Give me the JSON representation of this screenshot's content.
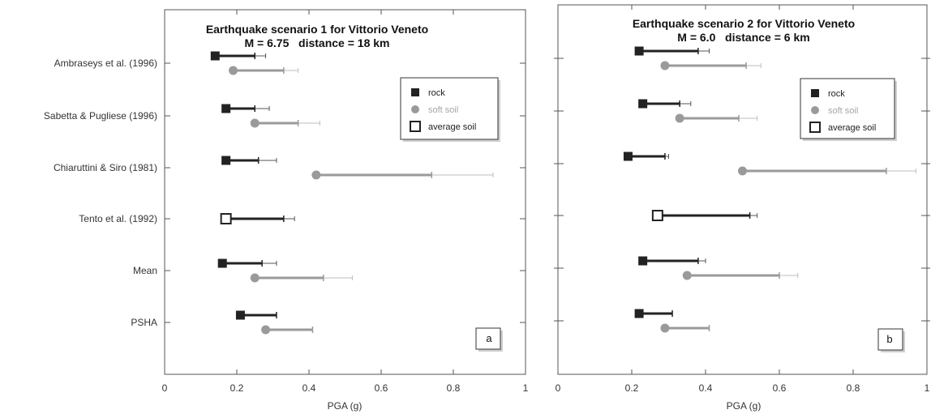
{
  "chart_data": [
    {
      "type": "scatter",
      "panel_label": "a",
      "title": "Earthquake scenario 1 for Vittorio Veneto",
      "subtitle": "M = 6.75   distance = 18 km",
      "xlabel": "PGA (g)",
      "xlim": [
        0,
        1
      ],
      "xticks": [
        "0",
        "0.2",
        "0.4",
        "0.6",
        "0.8",
        "1"
      ],
      "categories": [
        "Ambraseys et al. (1996)",
        "Sabetta & Pugliese (1996)",
        "Chiaruttini & Siro (1981)",
        "Tento et al. (1992)",
        "Mean",
        "PSHA"
      ],
      "legend": {
        "placement": "top-right",
        "entries": [
          "rock",
          "soft soil",
          "average soil"
        ]
      },
      "series": [
        {
          "name": "rock",
          "marker": "filled-square",
          "color": "#222222",
          "points": [
            {
              "category": "Ambraseys et al. (1996)",
              "value": 0.14,
              "inner": 0.25,
              "outer": 0.28
            },
            {
              "category": "Sabetta & Pugliese (1996)",
              "value": 0.17,
              "inner": 0.25,
              "outer": 0.29
            },
            {
              "category": "Chiaruttini & Siro (1981)",
              "value": 0.17,
              "inner": 0.26,
              "outer": 0.31
            },
            {
              "category": "Mean",
              "value": 0.16,
              "inner": 0.27,
              "outer": 0.31
            },
            {
              "category": "PSHA",
              "value": 0.21,
              "inner": 0.31,
              "outer": 0.31
            }
          ]
        },
        {
          "name": "soft soil",
          "marker": "filled-circle",
          "color": "#9a9a9a",
          "points": [
            {
              "category": "Ambraseys et al. (1996)",
              "value": 0.19,
              "inner": 0.33,
              "outer": 0.37
            },
            {
              "category": "Sabetta & Pugliese (1996)",
              "value": 0.25,
              "inner": 0.37,
              "outer": 0.43
            },
            {
              "category": "Chiaruttini & Siro (1981)",
              "value": 0.42,
              "inner": 0.74,
              "outer": 0.91
            },
            {
              "category": "Mean",
              "value": 0.25,
              "inner": 0.44,
              "outer": 0.52
            },
            {
              "category": "PSHA",
              "value": 0.28,
              "inner": 0.41,
              "outer": 0.41
            }
          ]
        },
        {
          "name": "average soil",
          "marker": "open-square",
          "color": "#222222",
          "points": [
            {
              "category": "Tento et al. (1992)",
              "value": 0.17,
              "inner": 0.33,
              "outer": 0.36
            }
          ]
        }
      ]
    },
    {
      "type": "scatter",
      "panel_label": "b",
      "title": "Earthquake scenario 2 for Vittorio Veneto",
      "subtitle": "M = 6.0   distance = 6 km",
      "xlabel": "PGA (g)",
      "xlim": [
        0,
        1
      ],
      "xticks": [
        "0",
        "0.2",
        "0.4",
        "0.6",
        "0.8",
        "1"
      ],
      "categories": [
        "Ambraseys et al. (1996)",
        "Sabetta & Pugliese (1996)",
        "Chiaruttini & Siro (1981)",
        "Tento et al. (1992)",
        "Mean",
        "PSHA"
      ],
      "legend": {
        "placement": "top-right",
        "entries": [
          "rock",
          "soft soil",
          "average soil"
        ]
      },
      "series": [
        {
          "name": "rock",
          "marker": "filled-square",
          "color": "#222222",
          "points": [
            {
              "category": "Ambraseys et al. (1996)",
              "value": 0.22,
              "inner": 0.38,
              "outer": 0.41
            },
            {
              "category": "Sabetta & Pugliese (1996)",
              "value": 0.23,
              "inner": 0.33,
              "outer": 0.36
            },
            {
              "category": "Chiaruttini & Siro (1981)",
              "value": 0.19,
              "inner": 0.29,
              "outer": 0.3
            },
            {
              "category": "Mean",
              "value": 0.23,
              "inner": 0.38,
              "outer": 0.4
            },
            {
              "category": "PSHA",
              "value": 0.22,
              "inner": 0.31,
              "outer": 0.31
            }
          ]
        },
        {
          "name": "soft soil",
          "marker": "filled-circle",
          "color": "#9a9a9a",
          "points": [
            {
              "category": "Ambraseys et al. (1996)",
              "value": 0.29,
              "inner": 0.51,
              "outer": 0.55
            },
            {
              "category": "Sabetta & Pugliese (1996)",
              "value": 0.33,
              "inner": 0.49,
              "outer": 0.54
            },
            {
              "category": "Chiaruttini & Siro (1981)",
              "value": 0.5,
              "inner": 0.89,
              "outer": 0.97
            },
            {
              "category": "Mean",
              "value": 0.35,
              "inner": 0.6,
              "outer": 0.65
            },
            {
              "category": "PSHA",
              "value": 0.29,
              "inner": 0.41,
              "outer": 0.41
            }
          ]
        },
        {
          "name": "average soil",
          "marker": "open-square",
          "color": "#222222",
          "points": [
            {
              "category": "Tento et al. (1992)",
              "value": 0.27,
              "inner": 0.52,
              "outer": 0.54
            }
          ]
        }
      ]
    }
  ]
}
